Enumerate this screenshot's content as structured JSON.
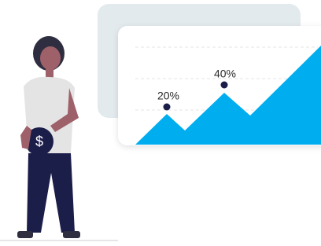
{
  "labels": [
    "20%",
    "40%"
  ],
  "coin_symbol": "$"
}
